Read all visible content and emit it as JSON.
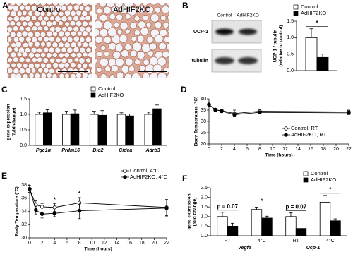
{
  "panel_a": {
    "label": "A",
    "images": [
      "Control",
      "AdHIF2KO"
    ]
  },
  "blot": {
    "label": "B",
    "lanes": [
      "Control",
      "AdHIF2KO"
    ],
    "rows": [
      "UCP-1",
      "tubulin"
    ]
  },
  "chart_data": [
    {
      "type": "bar",
      "ylabel": [
        "UCP-1 / tubulin",
        "(relative to control)"
      ],
      "categories": [
        null
      ],
      "series": [
        {
          "name": "Control",
          "color": "#ffffff",
          "values": [
            1.0
          ],
          "errors": [
            0.27
          ]
        },
        {
          "name": "AdHIF2KO",
          "color": "#000000",
          "values": [
            0.4
          ],
          "errors": [
            0.1
          ]
        }
      ],
      "annotations": [
        "*"
      ],
      "ylim": [
        0,
        1.5
      ],
      "yticks": [
        {
          "value": 0,
          "label": "0.0"
        },
        {
          "value": 0.5,
          "label": "0.5"
        },
        {
          "value": 1,
          "label": "1.0"
        },
        {
          "value": 1.5,
          "label": "1.5"
        }
      ],
      "legend": "upper right"
    },
    {
      "type": "bar",
      "panel": "C",
      "ylabel": [
        "gene expression",
        "(fold change)"
      ],
      "categories": [
        "Pgc1α",
        "Prdm16",
        "Dio2",
        "Cidea",
        "Adrb3"
      ],
      "italic_categories": true,
      "series": [
        {
          "name": "Control",
          "color": "#ffffff",
          "values": [
            1.0,
            1.0,
            1.0,
            1.0,
            1.0
          ],
          "errors": [
            0.07,
            0.1,
            0.1,
            0.05,
            0.07
          ]
        },
        {
          "name": "AdHIF2KO",
          "color": "#000000",
          "values": [
            1.05,
            1.02,
            0.97,
            0.95,
            1.18
          ],
          "errors": [
            0.1,
            0.12,
            0.15,
            0.06,
            0.12
          ]
        }
      ],
      "ylim": [
        0,
        1.5
      ],
      "yticks": [
        {
          "value": 0,
          "label": "0.0"
        },
        {
          "value": 0.5,
          "label": "0.5"
        },
        {
          "value": 1,
          "label": "1.0"
        },
        {
          "value": 1.5,
          "label": "1.5"
        }
      ],
      "legend": "upper center"
    },
    {
      "type": "line",
      "panel": "D",
      "ylabel": [
        "Body Temperature (°C)"
      ],
      "xlabel": "Time (hours)",
      "x": [
        0,
        1,
        2,
        4,
        8,
        22
      ],
      "series": [
        {
          "name": "Control, RT",
          "color": "#ffffff",
          "values": [
            37.5,
            35.0,
            34.8,
            33.5,
            34.5,
            34.2
          ],
          "errors": [
            0.5,
            0.6,
            0.5,
            1.5,
            0.6,
            0.8
          ]
        },
        {
          "name": "AdHIF2KO, RT",
          "color": "#000000",
          "values": [
            37.4,
            35.2,
            34.5,
            33.0,
            34.0,
            33.8
          ],
          "errors": [
            0.5,
            0.6,
            0.6,
            1.0,
            0.7,
            0.8
          ]
        }
      ],
      "xlim": [
        0,
        22
      ],
      "xticks": [
        0,
        2,
        4,
        6,
        8,
        10,
        12,
        14,
        16,
        18,
        20,
        22
      ],
      "ylim": [
        20,
        40
      ],
      "yticks": [
        20,
        25,
        30,
        35,
        40
      ],
      "legend": "lower right"
    },
    {
      "type": "line",
      "panel": "E",
      "ylabel": [
        "Body Temperature (°C)"
      ],
      "xlabel": "Time (hours)",
      "x": [
        0,
        1,
        2,
        4,
        8,
        22
      ],
      "series": [
        {
          "name": "Control, 4°C",
          "color": "#ffffff",
          "values": [
            37.4,
            35.0,
            34.7,
            34.6,
            35.3,
            34.6
          ],
          "errors": [
            0.5,
            0.6,
            0.5,
            0.6,
            0.8,
            1.2
          ]
        },
        {
          "name": "AdHIF2KO, 4°C",
          "color": "#000000",
          "values": [
            37.4,
            34.2,
            33.6,
            33.7,
            34.1,
            34.5
          ],
          "errors": [
            0.5,
            0.6,
            0.6,
            0.5,
            1.2,
            1.2
          ]
        }
      ],
      "annotations": [
        null,
        null,
        null,
        "*",
        "*",
        null
      ],
      "xlim": [
        0,
        22
      ],
      "xticks": [
        0,
        2,
        4,
        6,
        8,
        10,
        12,
        14,
        16,
        18,
        20,
        22
      ],
      "ylim": [
        30,
        38
      ],
      "yticks": [
        30,
        32,
        34,
        36,
        38
      ],
      "legend": "upper right"
    },
    {
      "type": "bar",
      "panel": "F",
      "ylabel": [
        "gene expression",
        "(fold change)"
      ],
      "categories": [
        "RT",
        "4°C",
        "RT",
        "4°C"
      ],
      "group_labels": [
        "Vegfa",
        "Ucp-1"
      ],
      "series": [
        {
          "name": "Control",
          "color": "#ffffff",
          "values": [
            1.0,
            1.37,
            1.0,
            1.75
          ],
          "errors": [
            0.22,
            0.12,
            0.2,
            0.35
          ]
        },
        {
          "name": "AdHIF2KO",
          "color": "#000000",
          "values": [
            0.5,
            0.92,
            0.38,
            0.78
          ],
          "errors": [
            0.15,
            0.1,
            0.08,
            0.1
          ]
        }
      ],
      "annotations": [
        "p = 0.07",
        "*",
        "p = 0.07",
        "*"
      ],
      "ylim": [
        0,
        2.5
      ],
      "yticks": [
        {
          "value": 0,
          "label": "0.0"
        },
        {
          "value": 0.5,
          "label": "0.5"
        },
        {
          "value": 1,
          "label": "1.0"
        },
        {
          "value": 1.5,
          "label": "1.5"
        },
        {
          "value": 2,
          "label": "2.0"
        },
        {
          "value": 2.5,
          "label": "2.5"
        }
      ],
      "legend": "upper right"
    }
  ]
}
